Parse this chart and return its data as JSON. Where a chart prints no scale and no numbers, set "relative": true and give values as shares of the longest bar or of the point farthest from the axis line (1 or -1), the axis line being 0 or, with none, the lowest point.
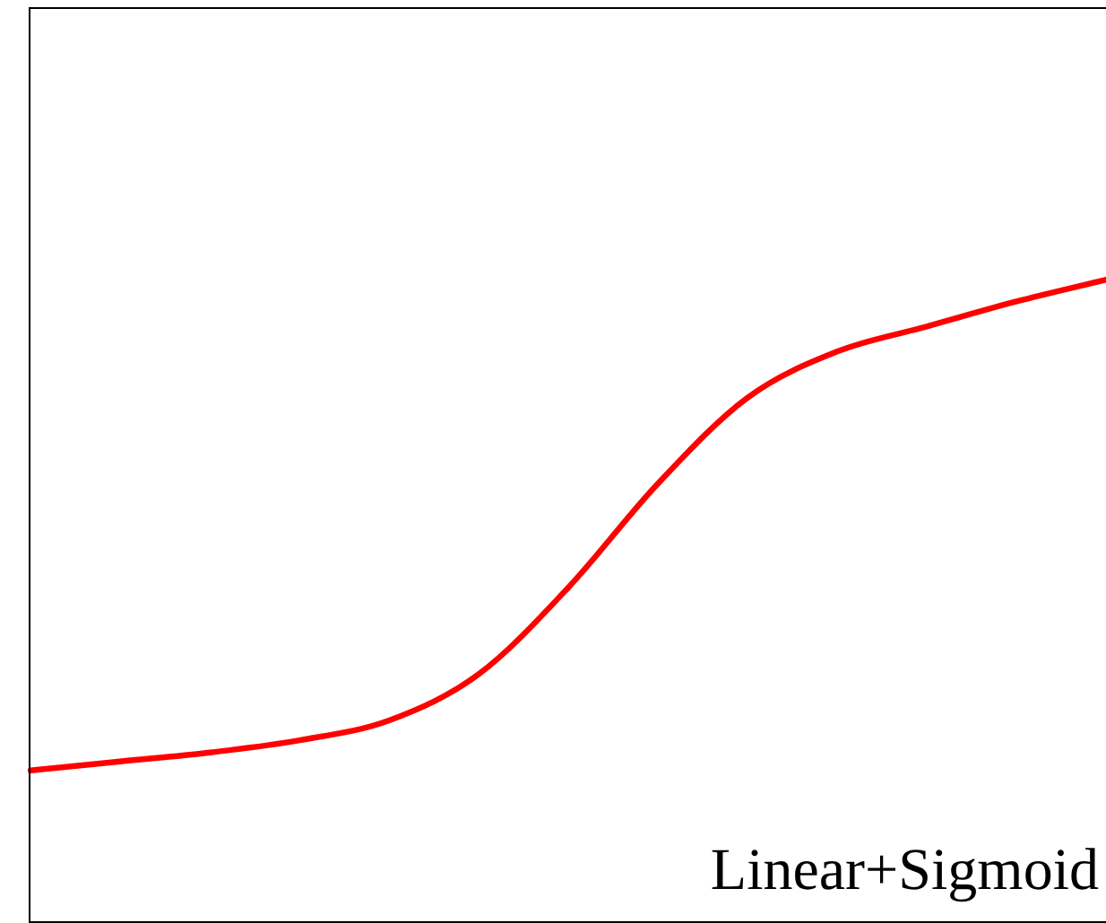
{
  "chart_data": {
    "type": "line",
    "relative": true,
    "categories": [
      null,
      null,
      null,
      null,
      null,
      null,
      null,
      null,
      null,
      null,
      null,
      null,
      null
    ],
    "series": [
      {
        "color": "#ff0000",
        "values": [
          0.235,
          0.249,
          0.263,
          0.282,
          0.313,
          0.385,
          0.52,
          0.682,
          0.816,
          0.888,
          0.927,
          0.966,
          1
        ]
      }
    ],
    "annotations": [
      "Linear+Sigmoid"
    ],
    "legend": false,
    "marker": "none",
    "line_style": "solid"
  }
}
